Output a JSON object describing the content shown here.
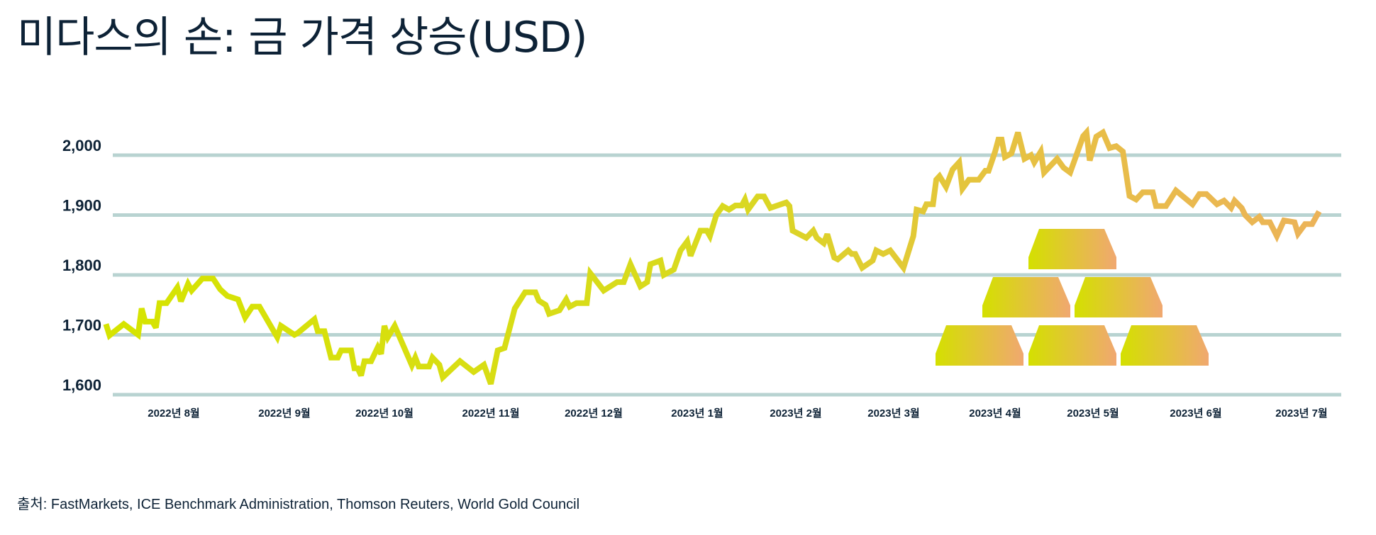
{
  "title": "미다스의 손: 금 가격 상승(USD)",
  "source": "출처: FastMarkets, ICE Benchmark Administration, Thomson Reuters, World Gold Council",
  "colors": {
    "text": "#0d2236",
    "grid": "#b8d3d1",
    "line_start": "#d6e400",
    "line_end": "#ecb25a",
    "bar_start": "#d4e000",
    "bar_end": "#f0a870"
  },
  "decoration": {
    "icon": "gold-bars-icon",
    "bars": 6
  },
  "chart_data": {
    "type": "line",
    "title": "미다스의 손: 금 가격 상승(USD)",
    "xlabel": "",
    "ylabel": "",
    "ylim": [
      1600,
      2000
    ],
    "yticks": [
      1600,
      1700,
      1800,
      1900,
      2000
    ],
    "ytick_labels": [
      "1,600",
      "1,700",
      "1,800",
      "1,900",
      "2,000"
    ],
    "xticks": [
      "2022-08-01",
      "2022-09-01",
      "2022-10-01",
      "2022-11-01",
      "2022-12-01",
      "2023-01-01",
      "2023-02-01",
      "2023-03-01",
      "2023-04-01",
      "2023-05-01",
      "2023-06-01",
      "2023-07-01"
    ],
    "xtick_labels": [
      "2022년 8월",
      "2022년 9월",
      "2022년 10월",
      "2022년 11월",
      "2022년 12월",
      "2023년 1월",
      "2023년 2월",
      "2023년 3월",
      "2023년 4월",
      "2023년 5월",
      "2023년 6월",
      "2023년 7월"
    ],
    "grid": "horizontal",
    "legend": "none",
    "series": [
      {
        "points": [
          [
            "2022-07-13",
            1718
          ],
          [
            "2022-07-14",
            1699
          ],
          [
            "2022-07-18",
            1718
          ],
          [
            "2022-07-22",
            1700
          ],
          [
            "2022-07-23",
            1744
          ],
          [
            "2022-07-24",
            1722
          ],
          [
            "2022-07-26",
            1722
          ],
          [
            "2022-07-27",
            1712
          ],
          [
            "2022-07-28",
            1753
          ],
          [
            "2022-07-30",
            1753
          ],
          [
            "2022-08-02",
            1779
          ],
          [
            "2022-08-03",
            1756
          ],
          [
            "2022-08-05",
            1785
          ],
          [
            "2022-08-06",
            1774
          ],
          [
            "2022-08-09",
            1794
          ],
          [
            "2022-08-12",
            1794
          ],
          [
            "2022-08-14",
            1776
          ],
          [
            "2022-08-16",
            1765
          ],
          [
            "2022-08-19",
            1759
          ],
          [
            "2022-08-21",
            1729
          ],
          [
            "2022-08-23",
            1747
          ],
          [
            "2022-08-25",
            1747
          ],
          [
            "2022-08-30",
            1696
          ],
          [
            "2022-08-31",
            1715
          ],
          [
            "2022-09-04",
            1700
          ],
          [
            "2022-09-05",
            1703
          ],
          [
            "2022-09-10",
            1726
          ],
          [
            "2022-09-11",
            1706
          ],
          [
            "2022-09-13",
            1706
          ],
          [
            "2022-09-15",
            1662
          ],
          [
            "2022-09-17",
            1662
          ],
          [
            "2022-09-18",
            1674
          ],
          [
            "2022-09-21",
            1674
          ],
          [
            "2022-09-22",
            1644
          ],
          [
            "2022-09-23",
            1644
          ],
          [
            "2022-09-24",
            1632
          ],
          [
            "2022-09-25",
            1656
          ],
          [
            "2022-09-27",
            1656
          ],
          [
            "2022-09-29",
            1679
          ],
          [
            "2022-09-30",
            1668
          ],
          [
            "2022-10-01",
            1715
          ],
          [
            "2022-10-02",
            1696
          ],
          [
            "2022-10-04",
            1715
          ],
          [
            "2022-10-09",
            1649
          ],
          [
            "2022-10-10",
            1662
          ],
          [
            "2022-10-11",
            1647
          ],
          [
            "2022-10-14",
            1647
          ],
          [
            "2022-10-15",
            1662
          ],
          [
            "2022-10-17",
            1650
          ],
          [
            "2022-10-18",
            1629
          ],
          [
            "2022-10-23",
            1656
          ],
          [
            "2022-10-27",
            1638
          ],
          [
            "2022-10-30",
            1650
          ],
          [
            "2022-11-01",
            1618
          ],
          [
            "2022-11-03",
            1674
          ],
          [
            "2022-11-05",
            1678
          ],
          [
            "2022-11-08",
            1744
          ],
          [
            "2022-11-11",
            1771
          ],
          [
            "2022-11-14",
            1771
          ],
          [
            "2022-11-15",
            1757
          ],
          [
            "2022-11-17",
            1750
          ],
          [
            "2022-11-18",
            1735
          ],
          [
            "2022-11-21",
            1741
          ],
          [
            "2022-11-23",
            1759
          ],
          [
            "2022-11-24",
            1747
          ],
          [
            "2022-11-26",
            1753
          ],
          [
            "2022-11-29",
            1753
          ],
          [
            "2022-11-30",
            1803
          ],
          [
            "2022-12-04",
            1774
          ],
          [
            "2022-12-08",
            1788
          ],
          [
            "2022-12-10",
            1788
          ],
          [
            "2022-12-12",
            1818
          ],
          [
            "2022-12-15",
            1781
          ],
          [
            "2022-12-17",
            1788
          ],
          [
            "2022-12-18",
            1818
          ],
          [
            "2022-12-21",
            1824
          ],
          [
            "2022-12-22",
            1800
          ],
          [
            "2022-12-25",
            1809
          ],
          [
            "2022-12-27",
            1841
          ],
          [
            "2022-12-29",
            1856
          ],
          [
            "2022-12-30",
            1832
          ],
          [
            "2023-01-02",
            1874
          ],
          [
            "2023-01-04",
            1874
          ],
          [
            "2023-01-05",
            1865
          ],
          [
            "2023-01-07",
            1900
          ],
          [
            "2023-01-09",
            1915
          ],
          [
            "2023-01-11",
            1909
          ],
          [
            "2023-01-13",
            1916
          ],
          [
            "2023-01-15",
            1916
          ],
          [
            "2023-01-16",
            1926
          ],
          [
            "2023-01-17",
            1909
          ],
          [
            "2023-01-20",
            1931
          ],
          [
            "2023-01-22",
            1931
          ],
          [
            "2023-01-24",
            1912
          ],
          [
            "2023-01-29",
            1921
          ],
          [
            "2023-01-30",
            1915
          ],
          [
            "2023-01-31",
            1874
          ],
          [
            "2023-02-04",
            1862
          ],
          [
            "2023-02-06",
            1874
          ],
          [
            "2023-02-07",
            1862
          ],
          [
            "2023-02-09",
            1853
          ],
          [
            "2023-02-10",
            1868
          ],
          [
            "2023-02-12",
            1829
          ],
          [
            "2023-02-13",
            1826
          ],
          [
            "2023-02-16",
            1841
          ],
          [
            "2023-02-17",
            1835
          ],
          [
            "2023-02-18",
            1835
          ],
          [
            "2023-02-20",
            1812
          ],
          [
            "2023-02-23",
            1824
          ],
          [
            "2023-02-24",
            1841
          ],
          [
            "2023-02-26",
            1835
          ],
          [
            "2023-02-28",
            1841
          ],
          [
            "2023-03-04",
            1812
          ],
          [
            "2023-03-07",
            1865
          ],
          [
            "2023-03-08",
            1909
          ],
          [
            "2023-03-10",
            1906
          ],
          [
            "2023-03-11",
            1918
          ],
          [
            "2023-03-13",
            1918
          ],
          [
            "2023-03-14",
            1959
          ],
          [
            "2023-03-15",
            1965
          ],
          [
            "2023-03-17",
            1947
          ],
          [
            "2023-03-19",
            1976
          ],
          [
            "2023-03-21",
            1988
          ],
          [
            "2023-03-22",
            1944
          ],
          [
            "2023-03-24",
            1959
          ],
          [
            "2023-03-27",
            1959
          ],
          [
            "2023-03-29",
            1974
          ],
          [
            "2023-03-30",
            1974
          ],
          [
            "2023-04-01",
            2006
          ],
          [
            "2023-04-02",
            2026
          ],
          [
            "2023-04-03",
            2026
          ],
          [
            "2023-04-04",
            1997
          ],
          [
            "2023-04-06",
            2003
          ],
          [
            "2023-04-08",
            2038
          ],
          [
            "2023-04-10",
            1994
          ],
          [
            "2023-04-12",
            2000
          ],
          [
            "2023-04-13",
            1988
          ],
          [
            "2023-04-15",
            2006
          ],
          [
            "2023-04-16",
            1971
          ],
          [
            "2023-04-20",
            1994
          ],
          [
            "2023-04-22",
            1979
          ],
          [
            "2023-04-24",
            1971
          ],
          [
            "2023-04-28",
            2032
          ],
          [
            "2023-04-29",
            2038
          ],
          [
            "2023-04-30",
            1991
          ],
          [
            "2023-05-02",
            2031
          ],
          [
            "2023-05-04",
            2038
          ],
          [
            "2023-05-06",
            2012
          ],
          [
            "2023-05-08",
            2015
          ],
          [
            "2023-05-10",
            2006
          ],
          [
            "2023-05-12",
            1932
          ],
          [
            "2023-05-14",
            1926
          ],
          [
            "2023-05-16",
            1938
          ],
          [
            "2023-05-19",
            1938
          ],
          [
            "2023-05-20",
            1915
          ],
          [
            "2023-05-23",
            1915
          ],
          [
            "2023-05-26",
            1941
          ],
          [
            "2023-05-31",
            1918
          ],
          [
            "2023-06-02",
            1935
          ],
          [
            "2023-06-04",
            1935
          ],
          [
            "2023-06-07",
            1918
          ],
          [
            "2023-06-09",
            1924
          ],
          [
            "2023-06-11",
            1912
          ],
          [
            "2023-06-12",
            1924
          ],
          [
            "2023-06-14",
            1912
          ],
          [
            "2023-06-15",
            1900
          ],
          [
            "2023-06-17",
            1888
          ],
          [
            "2023-06-19",
            1897
          ],
          [
            "2023-06-20",
            1888
          ],
          [
            "2023-06-22",
            1888
          ],
          [
            "2023-06-24",
            1865
          ],
          [
            "2023-06-26",
            1891
          ],
          [
            "2023-06-29",
            1888
          ],
          [
            "2023-06-30",
            1869
          ],
          [
            "2023-07-02",
            1885
          ],
          [
            "2023-07-04",
            1885
          ],
          [
            "2023-07-06",
            1906
          ]
        ]
      }
    ]
  }
}
